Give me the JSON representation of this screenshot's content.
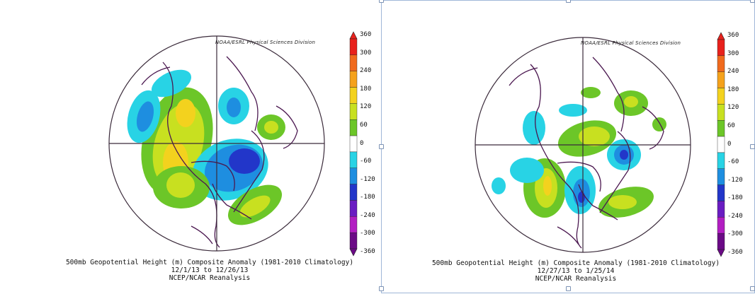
{
  "panels": [
    {
      "credit": "NOAA/ESRL Physical Sciences Division",
      "caption_title": "500mb Geopotential Height (m) Composite Anomaly (1981-2010 Climatology)",
      "date_range": "12/1/13  to 12/26/13",
      "source": "NCEP/NCAR Reanalysis"
    },
    {
      "credit": "NOAA/ESRL Physical Sciences Division",
      "caption_title": "500mb Geopotential Height (m) Composite Anomaly (1981-2010 Climatology)",
      "date_range": "12/27/13  to 1/25/14",
      "source": "NCEP/NCAR Reanalysis"
    }
  ],
  "colorbar": {
    "labels": [
      "360",
      "300",
      "240",
      "180",
      "120",
      "60",
      "0",
      "-60",
      "-120",
      "-180",
      "-240",
      "-300",
      "-360"
    ],
    "colors": [
      "#e8211c",
      "#f06a1d",
      "#f5a21c",
      "#f3d21e",
      "#c8e020",
      "#6cc628",
      "#ffffff",
      "#28d3e5",
      "#1e8ee0",
      "#2236c9",
      "#6a1cc2",
      "#b21ec2",
      "#6b0a86"
    ]
  },
  "colors": {
    "coastline": "#4b1850",
    "grid": "#3a2a3a",
    "selection_border": "#9fb7d8"
  }
}
